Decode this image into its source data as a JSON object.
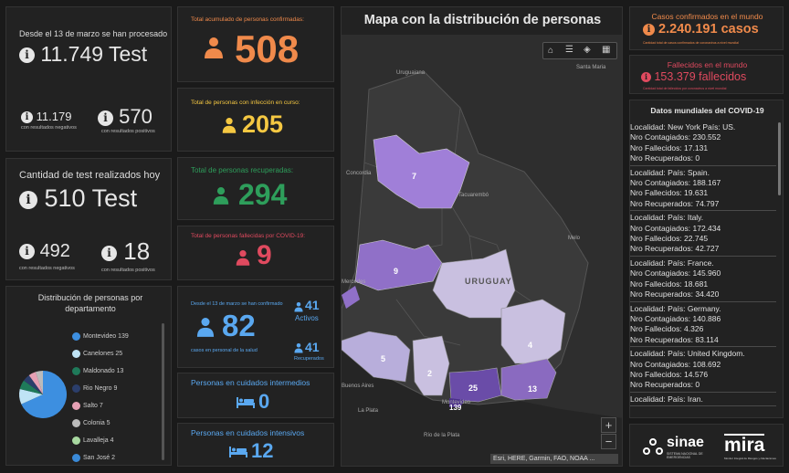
{
  "tests_total": {
    "label": "Desde el 13 de marzo se han procesado",
    "value": "11.749 Test",
    "neg_value": "11.179",
    "neg_label": "con resultados negativos",
    "pos_value": "570",
    "pos_label": "con resultados positivos"
  },
  "tests_today": {
    "label": "Cantidad de test realizados hoy",
    "value": "510 Test",
    "neg_value": "492",
    "neg_label": "con resultados negativos",
    "pos_value": "18",
    "pos_label": "con resultados positivos"
  },
  "confirmed": {
    "label": "Total acumulado de personas confirmadas:",
    "value": "508",
    "color": "#f08a4b"
  },
  "active": {
    "label": "Total de personas con infección en curso:",
    "value": "205",
    "color": "#f5c842"
  },
  "recovered": {
    "label": "Total de personas recuperadas:",
    "value": "294",
    "color": "#2e9e5b"
  },
  "deceased": {
    "label": "Total de personas fallecidas por COVID-19:",
    "value": "9",
    "color": "#e04a5f"
  },
  "health_staff": {
    "label": "Desde el 13 de marzo se han confirmado",
    "value": "82",
    "sublabel": "casos en personal de la salud",
    "active_value": "41",
    "active_label": "Activos",
    "recovered_value": "41",
    "recovered_label": "Recuperados"
  },
  "intermediate_care": {
    "label": "Personas en cuidados intermedios",
    "value": "0"
  },
  "intensive_care": {
    "label": "Personas en cuidados intensivos",
    "value": "12"
  },
  "distribution": {
    "title": "Distribución de personas por departamento",
    "items": [
      {
        "label": "Montevideo 139",
        "color": "#3d8fe0"
      },
      {
        "label": "Canelones 25",
        "color": "#bfe3f5"
      },
      {
        "label": "Maldonado 13",
        "color": "#1f7a5a"
      },
      {
        "label": "Rio Negro 9",
        "color": "#2b3e6b"
      },
      {
        "label": "Salto 7",
        "color": "#e6a0b4"
      },
      {
        "label": "Colonia 5",
        "color": "#bbbbbb"
      },
      {
        "label": "Lavalleja 4",
        "color": "#a8d8a0"
      },
      {
        "label": "San José 2",
        "color": "#3a8ad8"
      }
    ]
  },
  "map": {
    "title": "Mapa con la distribución de personas",
    "place_labels": [
      "Uruguaiana",
      "Santa Maria",
      "Concordia",
      "Tacuarembó",
      "Melo",
      "URUGUAY",
      "Buenos Aires",
      "Montevideo",
      "La Plata",
      "Río de la Plata",
      "Mercedes"
    ],
    "dept_counts": [
      "7",
      "9",
      "5",
      "2",
      "25",
      "139",
      "13",
      "4"
    ],
    "attribution": "Esri, HERE, Garmin, FAO, NOAA ...",
    "zoom_in": "+",
    "zoom_out": "−"
  },
  "world_cases": {
    "label": "Casos confirmados en el mundo",
    "value": "2.240.191 casos",
    "sublabel": "Cantidad total de casos confirmados de coronavirus a nivel mundial"
  },
  "world_deaths": {
    "label": "Fallecidos en el mundo",
    "value": "153.379 fallecidos",
    "sublabel": "Cantidad total de fallecidos por coronavirus a nivel mundial"
  },
  "world_data": {
    "title": "Datos mundiales del COVID-19",
    "records": [
      {
        "loc": "Localidad: New York País: US.",
        "c": "Nro Contagiados: 230.552",
        "f": "Nro Fallecidos: 17.131",
        "r": "Nro Recuperados: 0"
      },
      {
        "loc": "Localidad:  País: Spain.",
        "c": "Nro Contagiados: 188.167",
        "f": "Nro Fallecidos: 19.631",
        "r": "Nro Recuperados: 74.797"
      },
      {
        "loc": "Localidad:  País: Italy.",
        "c": "Nro Contagiados: 172.434",
        "f": "Nro Fallecidos: 22.745",
        "r": "Nro Recuperados: 42.727"
      },
      {
        "loc": "Localidad:  País: France.",
        "c": "Nro Contagiados: 145.960",
        "f": "Nro Fallecidos: 18.681",
        "r": "Nro Recuperados: 34.420"
      },
      {
        "loc": "Localidad:  País: Germany.",
        "c": "Nro Contagiados: 140.886",
        "f": "Nro Fallecidos: 4.326",
        "r": "Nro Recuperados: 83.114"
      },
      {
        "loc": "Localidad:  País: United Kingdom.",
        "c": "Nro Contagiados: 108.692",
        "f": "Nro Fallecidos: 14.576",
        "r": "Nro Recuperados: 0"
      },
      {
        "loc": "Localidad:  País: Iran.",
        "c": "",
        "f": "",
        "r": ""
      }
    ]
  },
  "logos": {
    "sinae": "sinae",
    "sinae_sub": "SISTEMA NACIONAL DE EMERGENCIAS",
    "mira": "mira",
    "mira_sub": "Monitor Integral de Riesgos y Afectaciones"
  }
}
